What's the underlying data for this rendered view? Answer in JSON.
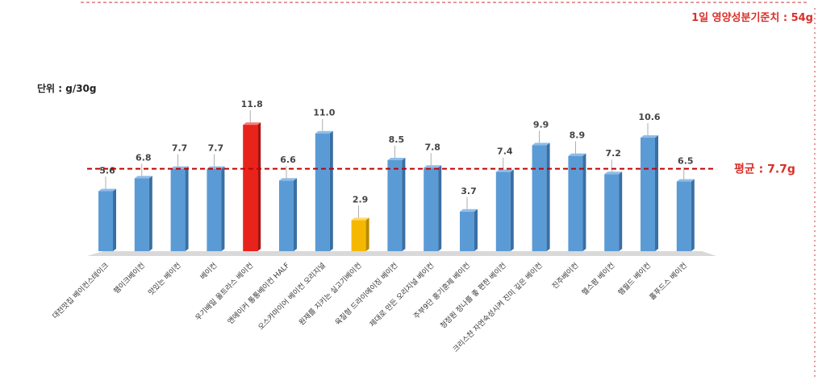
{
  "chart_data": {
    "type": "bar",
    "unit_label": "단위 : g/30g",
    "daily_reference_label": "1일 영양성분기준치 : 54g",
    "average_label": "평균 : 7.7g",
    "average_value": 7.7,
    "categories": [
      "대전맛집 베이컨스테이크",
      "햄이크베이컨",
      "맛있는 베이컨",
      "베이컨",
      "우기배일 울트라스 베이컨",
      "앤에이커 통통베이컨 HALF",
      "오스카마이어 베이컨 오리지널",
      "원재를 지키는 실고기베이컨",
      "육질형 드라이에이징 베이컨",
      "제대로 만든 오리지널 베이컨",
      "주부9단 홍기훈제 베이컨",
      "청정원 정나를 좋 편한 베이컨",
      "크리스챤 자연숙성시켜 진미 깊은 베이컨",
      "진주베이컨",
      "헬스팜 베이컨",
      "햄월드 베이컨",
      "홀푸드스 베이컨"
    ],
    "values": [
      5.6,
      6.8,
      7.7,
      7.7,
      11.8,
      6.6,
      11.0,
      2.9,
      8.5,
      7.8,
      3.7,
      7.4,
      9.9,
      8.9,
      7.2,
      10.6,
      6.5
    ],
    "value_labels": [
      "5.6",
      "6.8",
      "7.7",
      "7.7",
      "11.8",
      "6.6",
      "11.0",
      "2.9",
      "8.5",
      "7.8",
      "3.7",
      "7.4",
      "9.9",
      "8.9",
      "7.2",
      "10.6",
      "6.5"
    ],
    "highlight": {
      "index": 4,
      "color": "#e8231c"
    },
    "lowlight": {
      "index": 7,
      "color": "#f5b800"
    },
    "bar_color": "#5b9bd5",
    "average_line_color": "#c00000",
    "ylim": [
      0,
      13
    ],
    "grid": false
  }
}
